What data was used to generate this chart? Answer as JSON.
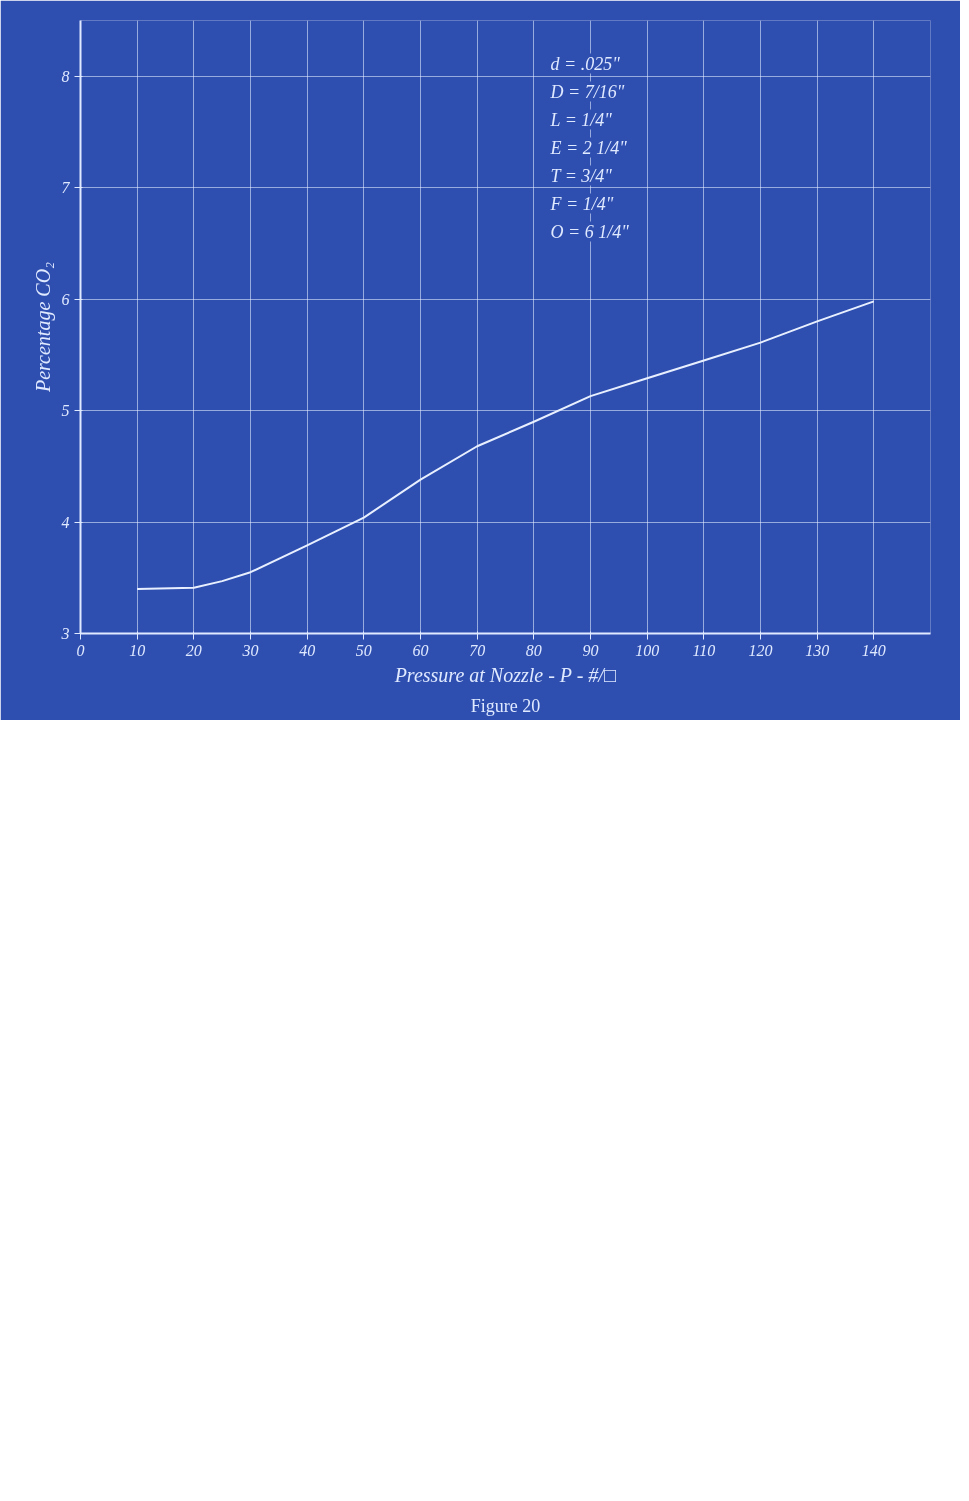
{
  "chart_data": {
    "type": "line",
    "xlabel": "Pressure at Nozzle - P - #/□",
    "ylabel": "Percentage CO₂",
    "x": [
      10,
      20,
      25,
      30,
      40,
      50,
      60,
      70,
      80,
      90,
      100,
      110,
      120,
      130,
      140
    ],
    "series": [
      {
        "color": "#e8f0ff",
        "values": [
          3.4,
          3.41,
          3.47,
          3.55,
          3.79,
          4.04,
          4.38,
          4.68,
          4.9,
          5.13,
          5.29,
          5.45,
          5.61,
          5.8,
          5.98
        ]
      }
    ],
    "xlim": [
      0,
      150
    ],
    "xticks": [
      0,
      10,
      20,
      30,
      40,
      50,
      60,
      70,
      80,
      90,
      100,
      110,
      120,
      130,
      140
    ],
    "ylim": [
      3,
      8.5
    ],
    "yticks": [
      3,
      4,
      5,
      6,
      7,
      8
    ],
    "grid": true,
    "marker": "none",
    "line_style": "solid",
    "annotations": [
      "d = .025\"",
      "D = 7/16\"",
      "L = 1/4\"",
      "E = 2 1/4\"",
      "T = 3/4\"",
      "F = 1/4\"",
      "O = 6 1/4\"",
      "Figure 20"
    ]
  }
}
